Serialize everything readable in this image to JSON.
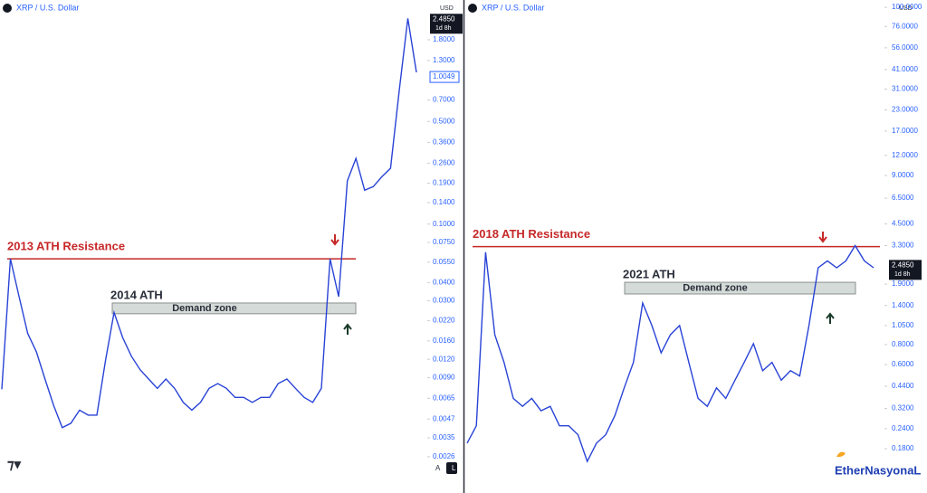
{
  "chart_data": [
    {
      "type": "line",
      "title": "XRP / U.S. Dollar",
      "currency": "USD",
      "log_scale": true,
      "color": "#2943d6",
      "values": [
        0.0075,
        0.058,
        0.032,
        0.018,
        0.0135,
        0.0088,
        0.0058,
        0.0041,
        0.0044,
        0.0054,
        0.005,
        0.005,
        0.0117,
        0.025,
        0.0168,
        0.0126,
        0.0102,
        0.0088,
        0.0076,
        0.0088,
        0.0076,
        0.0061,
        0.0054,
        0.0061,
        0.0076,
        0.0082,
        0.0076,
        0.0066,
        0.0066,
        0.0061,
        0.0066,
        0.0066,
        0.0082,
        0.0088,
        0.0076,
        0.0066,
        0.0061,
        0.0076,
        0.058,
        0.032,
        0.197,
        0.28,
        0.17,
        0.18,
        0.21,
        0.24,
        0.8,
        2.52,
        1.08
      ],
      "ylim": [
        0.0021,
        3.36
      ],
      "yticks": [
        {
          "value": 1.8,
          "label": "1.8000"
        },
        {
          "value": 1.3,
          "label": "1.3000"
        },
        {
          "value": 0.7,
          "label": "0.7000"
        },
        {
          "value": 0.5,
          "label": "0.5000"
        },
        {
          "value": 0.36,
          "label": "0.3600"
        },
        {
          "value": 0.26,
          "label": "0.2600"
        },
        {
          "value": 0.19,
          "label": "0.1900"
        },
        {
          "value": 0.14,
          "label": "0.1400"
        },
        {
          "value": 0.1,
          "label": "0.1000"
        },
        {
          "value": 0.075,
          "label": "0.0750"
        },
        {
          "value": 0.055,
          "label": "0.0550"
        },
        {
          "value": 0.04,
          "label": "0.0400"
        },
        {
          "value": 0.03,
          "label": "0.0300"
        },
        {
          "value": 0.022,
          "label": "0.0220"
        },
        {
          "value": 0.016,
          "label": "0.0160"
        },
        {
          "value": 0.012,
          "label": "0.0120"
        },
        {
          "value": 0.009,
          "label": "0.0090"
        },
        {
          "value": 0.0065,
          "label": "0.0065"
        },
        {
          "value": 0.0047,
          "label": "0.0047"
        },
        {
          "value": 0.0035,
          "label": "0.0035"
        },
        {
          "value": 0.0026,
          "label": "0.0026"
        }
      ],
      "price_labels": [
        {
          "value": 2.485,
          "label": "2.4850",
          "sub": "1d 8h"
        },
        {
          "value": 1.0049,
          "label": "1.0049"
        }
      ],
      "resistance": {
        "label": "2013 ATH Resistance",
        "value": 0.058
      },
      "demand_zone": {
        "label": "Demand zone",
        "top": 0.029,
        "bottom": 0.0245,
        "peak_label": "2014 ATH"
      },
      "footer": [
        "A",
        "L"
      ]
    },
    {
      "type": "line",
      "title": "XRP / U.S. Dollar",
      "currency": "USD",
      "log_scale": true,
      "color": "#2943d6",
      "values": [
        0.195,
        0.25,
        3.0,
        0.92,
        0.62,
        0.37,
        0.33,
        0.37,
        0.31,
        0.33,
        0.25,
        0.25,
        0.22,
        0.15,
        0.195,
        0.22,
        0.29,
        0.43,
        0.62,
        1.45,
        1.05,
        0.71,
        0.92,
        1.05,
        0.62,
        0.37,
        0.33,
        0.43,
        0.37,
        0.48,
        0.62,
        0.81,
        0.55,
        0.62,
        0.48,
        0.55,
        0.51,
        1.05,
        2.4,
        2.65,
        2.4,
        2.65,
        3.3,
        2.65,
        2.4
      ],
      "ylim": [
        0.132,
        111
      ],
      "yticks": [
        {
          "value": 100,
          "label": "100.0000"
        },
        {
          "value": 76,
          "label": "76.0000"
        },
        {
          "value": 56,
          "label": "56.0000"
        },
        {
          "value": 41,
          "label": "41.0000"
        },
        {
          "value": 31,
          "label": "31.0000"
        },
        {
          "value": 23,
          "label": "23.0000"
        },
        {
          "value": 17,
          "label": "17.0000"
        },
        {
          "value": 12,
          "label": "12.0000"
        },
        {
          "value": 9,
          "label": "9.0000"
        },
        {
          "value": 6.5,
          "label": "6.5000"
        },
        {
          "value": 4.5,
          "label": "4.5000"
        },
        {
          "value": 3.3,
          "label": "3.3000"
        },
        {
          "value": 1.9,
          "label": "1.9000"
        },
        {
          "value": 1.4,
          "label": "1.4000"
        },
        {
          "value": 1.05,
          "label": "1.0500"
        },
        {
          "value": 0.8,
          "label": "0.8000"
        },
        {
          "value": 0.6,
          "label": "0.6000"
        },
        {
          "value": 0.44,
          "label": "0.4400"
        },
        {
          "value": 0.32,
          "label": "0.3200"
        },
        {
          "value": 0.24,
          "label": "0.2400"
        },
        {
          "value": 0.18,
          "label": "0.1800"
        }
      ],
      "price_labels": [
        {
          "value": 2.485,
          "label": "2.4850",
          "sub": "1d 8h"
        }
      ],
      "resistance": {
        "label": "2018 ATH Resistance",
        "value": 3.25
      },
      "demand_zone": {
        "label": "Demand zone",
        "top": 1.95,
        "bottom": 1.65,
        "peak_label": "2021 ATH"
      },
      "watermark": "EtherNasyonaL"
    }
  ]
}
